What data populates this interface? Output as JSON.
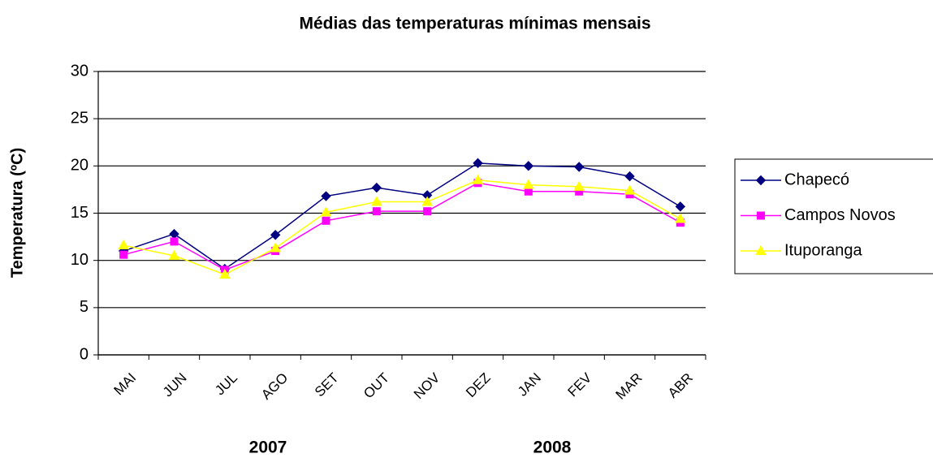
{
  "chart_data": {
    "type": "line",
    "title": "Médias das temperaturas mínimas mensais",
    "y_label": "Temperatura (ºC)",
    "annotations": [
      "2007",
      "2008"
    ],
    "categories": [
      "MAI",
      "JUN",
      "JUL",
      "AGO",
      "SET",
      "OUT",
      "NOV",
      "DEZ",
      "JAN",
      "FEV",
      "MAR",
      "ABR"
    ],
    "series": [
      {
        "name": "Chapecó",
        "color": "#000080",
        "marker": "diamond",
        "values": [
          11.0,
          12.8,
          9.1,
          12.7,
          16.8,
          17.7,
          16.9,
          20.3,
          20.0,
          19.9,
          18.9,
          15.7
        ]
      },
      {
        "name": "Campos Novos",
        "color": "#FF00FF",
        "marker": "square",
        "values": [
          10.6,
          12.0,
          9.0,
          11.0,
          14.2,
          15.2,
          15.2,
          18.2,
          17.3,
          17.3,
          17.0,
          14.0
        ]
      },
      {
        "name": "Ituporanga",
        "color": "#FFFF00",
        "marker": "triangle",
        "values": [
          11.6,
          10.5,
          8.5,
          11.3,
          15.1,
          16.2,
          16.2,
          18.5,
          18.0,
          17.8,
          17.4,
          14.4
        ]
      }
    ],
    "ylim": [
      0,
      30
    ],
    "yticks": [
      0,
      5,
      10,
      15,
      20,
      25,
      30
    ],
    "grid": true,
    "legend": "right"
  }
}
